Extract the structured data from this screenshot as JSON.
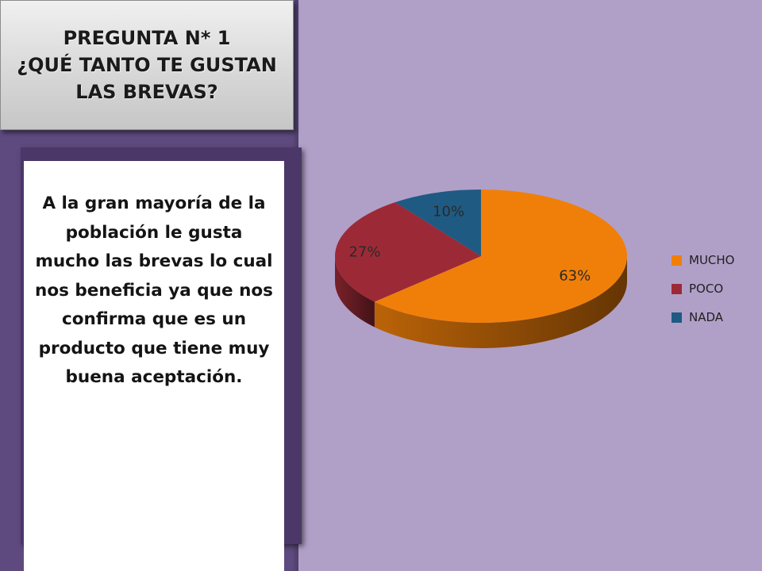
{
  "title": {
    "line1": "PREGUNTA N* 1",
    "line2": "¿QUÉ TANTO TE GUSTAN",
    "line3": "LAS BREVAS?"
  },
  "body_text": "A la gran mayoría de la población le gusta mucho las brevas lo cual nos beneficia ya que nos confirma que es un producto que tiene muy buena aceptación.",
  "chart_data": {
    "type": "pie",
    "style": "3d",
    "legend_position": "right",
    "slices": [
      {
        "name": "MUCHO",
        "value": 63,
        "label": "63%",
        "color": "#f07f0a"
      },
      {
        "name": "POCO",
        "value": 27,
        "label": "27%",
        "color": "#9c2a36"
      },
      {
        "name": "NADA",
        "value": 10,
        "label": "10%",
        "color": "#1f5a82"
      }
    ]
  }
}
